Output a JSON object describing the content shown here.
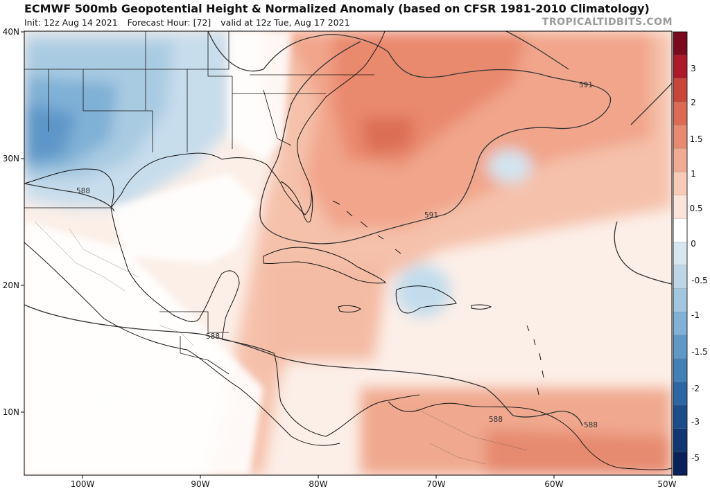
{
  "header": {
    "title": "ECMWF 500mb Geopotential Height & Normalized Anomaly (based on CFSR 1981-2010 Climatology)",
    "init": "Init: 12z Aug 14 2021",
    "forecast_hour": "Forecast Hour: [72]",
    "valid": "valid at 12z Tue, Aug 17 2021",
    "brand": "TROPICALTIDBITS.COM"
  },
  "axes": {
    "lat_labels": [
      "40N",
      "30N",
      "20N",
      "10N"
    ],
    "lon_labels": [
      "100W",
      "90W",
      "80W",
      "70W",
      "60W",
      "50W"
    ]
  },
  "contours": {
    "labels": [
      "591",
      "588",
      "591",
      "588",
      "588",
      "588"
    ]
  },
  "colorbar": {
    "labels": [
      "3",
      "2",
      "1.5",
      "1",
      "0.5",
      "0",
      "-0.5",
      "-1",
      "-1.5",
      "-2",
      "-3",
      "-5"
    ],
    "colors": [
      "#7a0a1d",
      "#ad1a2a",
      "#c9453a",
      "#db6a55",
      "#e88a72",
      "#f0ab94",
      "#f6cbb8",
      "#fbe5da",
      "#ffffff",
      "#d8e6ef",
      "#bed6e6",
      "#a2c6de",
      "#81b1d4",
      "#5f98c6",
      "#4280b7",
      "#2c66a3",
      "#1d4c8a",
      "#123672",
      "#0b2159"
    ]
  },
  "regions": {
    "cool_gulf_texas": "#a9cbe2",
    "cool_core": "#5d96c8",
    "warm_atlantic": "#e07b62",
    "warm_southamerica": "#e99279",
    "hispaniola_cool": "#c3dcec"
  }
}
